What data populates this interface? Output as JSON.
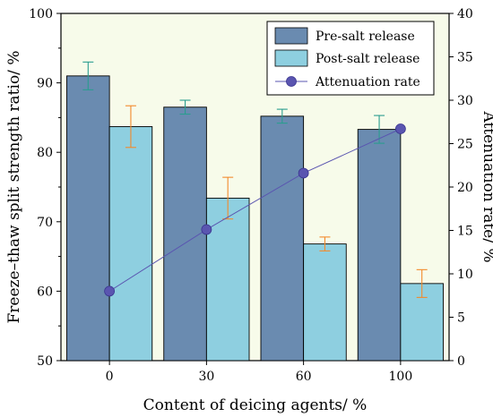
{
  "chart_data": {
    "type": "bar",
    "categories": [
      "0",
      "30",
      "60",
      "100"
    ],
    "xlabel": "Content of deicing agents/ %",
    "ylabel_left": "Freeze–thaw split strength ratio/ %",
    "ylabel_right": "Attenuation rate/ %",
    "ylim_left": [
      50,
      100
    ],
    "ylim_right": [
      0,
      40
    ],
    "yticks_left": [
      "50",
      "60",
      "70",
      "80",
      "90",
      "100"
    ],
    "yticks_right": [
      "0",
      "5",
      "10",
      "15",
      "20",
      "25",
      "30",
      "35",
      "40"
    ],
    "legend_position": "top-right",
    "series": [
      {
        "name": "Pre-salt release",
        "kind": "bar",
        "axis": "left",
        "values": [
          91.0,
          86.5,
          85.2,
          83.3
        ],
        "errors": [
          2.0,
          1.0,
          1.0,
          2.0
        ],
        "color": "#6a8bb0",
        "error_color": "#2a9d8f"
      },
      {
        "name": "Post-salt release",
        "kind": "bar",
        "axis": "left",
        "values": [
          83.7,
          73.4,
          66.8,
          61.1
        ],
        "errors": [
          3.0,
          3.0,
          1.0,
          2.0
        ],
        "color": "#8ecfe0",
        "error_color": "#f28a2c"
      },
      {
        "name": "Attenuation rate",
        "kind": "line",
        "axis": "right",
        "values": [
          8.0,
          15.1,
          21.6,
          26.7
        ],
        "color": "#5a55b0",
        "marker_color": "#5a55b0"
      }
    ]
  }
}
